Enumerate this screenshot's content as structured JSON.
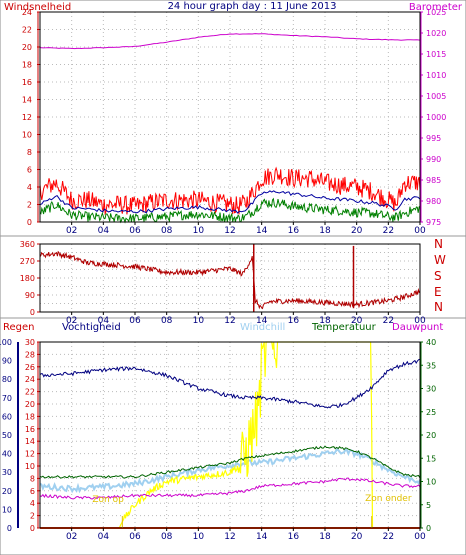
{
  "header": {
    "left_label": "Windsnelheid",
    "title": "24 hour graph day : 11 June 2013",
    "right_label": "Barometer"
  },
  "x_ticks": [
    "02",
    "04",
    "06",
    "08",
    "10",
    "12",
    "14",
    "16",
    "18",
    "20",
    "22",
    "00"
  ],
  "colors": {
    "wind": "#ff0000",
    "gust": "#0000a0",
    "wind_avg": "#008000",
    "barometer": "#cc00cc",
    "direction": "#b00000",
    "humidity": "#000080",
    "windchill": "#a0d0f0",
    "temperature": "#006400",
    "dewpoint": "#cc00cc",
    "solar": "#ffff00",
    "rain": "#ff3300",
    "grid": "#bbbbbb"
  },
  "chart_data": [
    {
      "type": "line",
      "name": "wind-barometer",
      "x_unit": "hour",
      "y_left": {
        "label": "Windsnelheid",
        "ticks": [
          "0",
          "2",
          "4",
          "6",
          "8",
          "10",
          "12",
          "14",
          "16",
          "18",
          "20",
          "22",
          "24"
        ],
        "range": [
          0,
          24
        ]
      },
      "y_right": {
        "label": "Barometer",
        "ticks": [
          "975",
          "980",
          "985",
          "990",
          "995",
          "1000",
          "1005",
          "1010",
          "1015",
          "1020",
          "1025"
        ],
        "range": [
          975,
          1025
        ]
      },
      "series": [
        {
          "name": "Barometer",
          "axis": "right",
          "x": [
            0,
            2,
            4,
            6,
            8,
            10,
            12,
            14,
            16,
            18,
            20,
            22,
            24
          ],
          "values": [
            1016.5,
            1016.3,
            1016.5,
            1016.8,
            1017.8,
            1019.0,
            1019.8,
            1019.8,
            1019.4,
            1019.1,
            1018.6,
            1018.4,
            1018.3
          ]
        },
        {
          "axis": "left",
          "x": [
            0,
            1,
            2,
            3,
            4,
            5,
            6,
            7,
            8,
            9,
            10,
            11,
            12,
            12.5,
            13,
            13.5,
            14,
            15,
            16,
            17,
            18,
            19,
            20,
            21,
            22,
            22.5,
            23,
            24
          ],
          "values": [
            3.5,
            4.5,
            2.5,
            2.5,
            2.0,
            2.0,
            1.8,
            2.2,
            2.5,
            2.5,
            2.5,
            2.2,
            2.0,
            1.8,
            2.2,
            3.5,
            5.0,
            5.5,
            5.0,
            5.0,
            4.5,
            4.2,
            4.0,
            3.5,
            2.5,
            2.0,
            4.5,
            4.5
          ]
        },
        {
          "axis": "left",
          "x": [
            0,
            1,
            2,
            3,
            4,
            5,
            6,
            7,
            8,
            9,
            10,
            11,
            12,
            12.5,
            13,
            13.5,
            14,
            15,
            16,
            17,
            18,
            19,
            20,
            21,
            22,
            22.5,
            23,
            24
          ],
          "values": [
            2.0,
            3.0,
            1.6,
            1.5,
            1.3,
            1.2,
            1.2,
            1.3,
            1.5,
            1.6,
            1.7,
            1.5,
            1.3,
            1.2,
            1.4,
            2.3,
            3.3,
            3.5,
            3.2,
            3.0,
            2.7,
            2.6,
            2.4,
            2.2,
            1.8,
            1.5,
            2.6,
            2.8
          ]
        },
        {
          "axis": "left",
          "x": [
            0,
            1,
            2,
            3,
            4,
            5,
            6,
            7,
            8,
            9,
            10,
            11,
            12,
            12.5,
            13,
            13.5,
            14,
            15,
            16,
            17,
            18,
            19,
            20,
            21,
            22,
            22.5,
            23,
            24
          ],
          "values": [
            1.0,
            2.0,
            0.8,
            0.6,
            0.5,
            0.4,
            0.4,
            0.5,
            0.6,
            0.8,
            0.9,
            0.7,
            0.5,
            0.4,
            0.6,
            1.3,
            2.2,
            2.2,
            1.8,
            1.6,
            1.4,
            1.3,
            1.1,
            1.0,
            0.6,
            0.5,
            1.0,
            1.6
          ]
        }
      ]
    },
    {
      "type": "line",
      "name": "wind-direction",
      "x_unit": "hour",
      "y_left": {
        "ticks": [
          "0",
          "45",
          "90",
          "135",
          "180",
          "225",
          "270",
          "315",
          "360"
        ],
        "range": [
          0,
          360
        ]
      },
      "y_right_labels": [
        "N",
        "W",
        "S",
        "E",
        "N"
      ],
      "series": [
        {
          "axis": "left",
          "x": [
            0,
            1,
            2,
            3,
            4,
            6,
            8,
            10,
            12,
            12.8,
            13.4,
            13.6,
            14,
            14.5,
            16,
            18,
            20,
            22,
            23,
            24
          ],
          "values": [
            300,
            310,
            290,
            260,
            255,
            240,
            210,
            210,
            230,
            200,
            290,
            60,
            20,
            55,
            60,
            50,
            40,
            60,
            80,
            110
          ]
        }
      ]
    },
    {
      "type": "line",
      "name": "temperature-humidity",
      "x_unit": "hour",
      "y_axes": [
        {
          "label": "Regen",
          "ticks": [
            "0",
            "2",
            "4",
            "6",
            "8",
            "10",
            "12",
            "14",
            "16",
            "18",
            "20",
            "22",
            "24",
            "26",
            "28",
            "30"
          ],
          "range": [
            0,
            30
          ]
        },
        {
          "label": "Vochtigheid",
          "ticks": [
            "0",
            "10",
            "20",
            "30",
            "40",
            "50",
            "60",
            "70",
            "80",
            "90",
            "100"
          ],
          "range": [
            0,
            100
          ]
        },
        {
          "label": "Temperatuur",
          "ticks": [
            "0",
            "5",
            "10",
            "15",
            "20",
            "25",
            "30",
            "35",
            "40"
          ],
          "range": [
            0,
            40
          ]
        }
      ],
      "legend": [
        "Regen",
        "Vochtigheid",
        "Windchill",
        "Temperatuur",
        "Dauwpunt"
      ],
      "annotations": [
        "Zon op",
        "Zon onder"
      ],
      "series": [
        {
          "name": "Vochtigheid",
          "axis": "humidity",
          "x": [
            0,
            2,
            4,
            6,
            8,
            10,
            12,
            13,
            14,
            16,
            18,
            19,
            20,
            21,
            22,
            23,
            24
          ],
          "values": [
            82,
            83,
            85,
            86,
            82,
            75,
            71,
            70,
            70,
            68,
            65,
            66,
            70,
            76,
            85,
            88,
            90
          ]
        },
        {
          "name": "Temperatuur",
          "axis": "temperature",
          "x": [
            0,
            2,
            4,
            6,
            8,
            10,
            12,
            13,
            14,
            16,
            18,
            19,
            20,
            21,
            22,
            23,
            24
          ],
          "values": [
            11,
            11,
            11,
            11,
            12,
            13,
            14,
            15,
            15.5,
            16.5,
            17.5,
            17.2,
            16.5,
            15,
            13,
            11.5,
            11
          ]
        },
        {
          "name": "Windchill",
          "axis": "temperature",
          "x": [
            0,
            2,
            4,
            6,
            8,
            10,
            12,
            13,
            14,
            16,
            18,
            19,
            20,
            21,
            22,
            23,
            24
          ],
          "values": [
            9,
            8.5,
            8.8,
            9.5,
            11,
            12.5,
            13.5,
            14,
            14,
            15,
            16,
            16.5,
            16,
            14.5,
            12.5,
            11,
            10
          ]
        },
        {
          "name": "Dauwpunt",
          "axis": "temperature",
          "x": [
            0,
            2,
            4,
            6,
            8,
            10,
            12,
            13,
            14,
            16,
            18,
            19,
            20,
            21,
            22,
            23,
            24
          ],
          "values": [
            7,
            6.5,
            6.5,
            7,
            7,
            7,
            7.5,
            8,
            9,
            9.5,
            10,
            10.5,
            10.5,
            10,
            9.5,
            9,
            9
          ]
        },
        {
          "axis": "temperature",
          "x": [
            0,
            5.0,
            5.3,
            6,
            7,
            8,
            10,
            12,
            12.8,
            13.3,
            13.8,
            14.0,
            14.4,
            14.6,
            15.0,
            16,
            18,
            20,
            20.9,
            21.0,
            22,
            24
          ],
          "values": [
            0,
            0,
            2,
            5,
            8,
            10,
            11,
            12,
            14,
            19,
            25,
            34,
            40,
            39,
            40,
            40,
            40,
            40,
            40,
            0,
            0,
            0
          ]
        },
        {
          "name": "Regen",
          "axis": "rain",
          "x": [
            0,
            24
          ],
          "values": [
            0,
            0
          ]
        }
      ]
    }
  ]
}
